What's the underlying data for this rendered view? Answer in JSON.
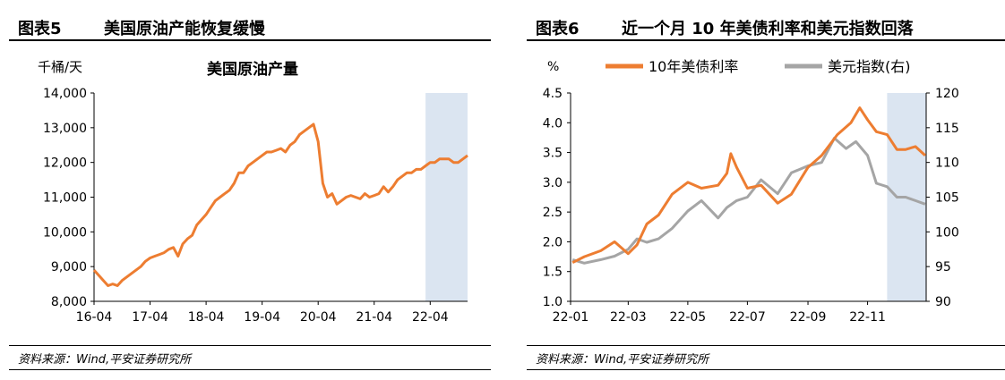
{
  "left": {
    "header_num": "图表5",
    "header_title": "美国原油产能恢复缓慢",
    "source": "资料来源：Wind,平安证券研究所"
  },
  "right": {
    "header_num": "图表6",
    "header_title": "近一个月 10 年美债利率和美元指数回落",
    "source": "资料来源：Wind,平安证券研究所"
  },
  "chart_data": [
    {
      "type": "line",
      "title": "美国原油产量",
      "ylabel": "千桶/天",
      "ylim": [
        8000,
        14000
      ],
      "y_ticks": [
        "8,000",
        "9,000",
        "10,000",
        "11,000",
        "12,000",
        "13,000",
        "14,000"
      ],
      "x_ticks": [
        "16-04",
        "17-04",
        "18-04",
        "19-04",
        "20-04",
        "21-04",
        "22-04"
      ],
      "xlim": [
        "2016-04",
        "2022-12"
      ],
      "highlight": {
        "from": "2022-03",
        "to": "2022-12",
        "color": "#dbe5f1"
      },
      "colors": {
        "line": "#ED7D31"
      },
      "series": [
        {
          "x": [
            "2016-04",
            "2016-05",
            "2016-06",
            "2016-07",
            "2016-08",
            "2016-09",
            "2016-10",
            "2016-11",
            "2016-12",
            "2017-01",
            "2017-02",
            "2017-03",
            "2017-04",
            "2017-05",
            "2017-06",
            "2017-07",
            "2017-08",
            "2017-09",
            "2017-10",
            "2017-11",
            "2017-12",
            "2018-01",
            "2018-02",
            "2018-03",
            "2018-04",
            "2018-05",
            "2018-06",
            "2018-07",
            "2018-08",
            "2018-09",
            "2018-10",
            "2018-11",
            "2018-12",
            "2019-01",
            "2019-02",
            "2019-03",
            "2019-04",
            "2019-05",
            "2019-06",
            "2019-07",
            "2019-08",
            "2019-09",
            "2019-10",
            "2019-11",
            "2019-12",
            "2020-01",
            "2020-02",
            "2020-03",
            "2020-04",
            "2020-05",
            "2020-06",
            "2020-07",
            "2020-08",
            "2020-09",
            "2020-10",
            "2020-11",
            "2020-12",
            "2021-01",
            "2021-02",
            "2021-03",
            "2021-04",
            "2021-05",
            "2021-06",
            "2021-07",
            "2021-08",
            "2021-09",
            "2021-10",
            "2021-11",
            "2021-12",
            "2022-01",
            "2022-02",
            "2022-03",
            "2022-04",
            "2022-05",
            "2022-06",
            "2022-07",
            "2022-08",
            "2022-09",
            "2022-10",
            "2022-11",
            "2022-12"
          ],
          "values": [
            8900,
            8750,
            8600,
            8450,
            8500,
            8450,
            8600,
            8700,
            8800,
            8900,
            9000,
            9150,
            9250,
            9300,
            9350,
            9400,
            9500,
            9550,
            9300,
            9650,
            9800,
            9900,
            10200,
            10350,
            10500,
            10700,
            10900,
            11000,
            11100,
            11200,
            11400,
            11700,
            11700,
            11900,
            12000,
            12100,
            12200,
            12300,
            12300,
            12350,
            12400,
            12300,
            12500,
            12600,
            12800,
            12900,
            13000,
            13100,
            12600,
            11400,
            11000,
            11100,
            10800,
            10900,
            11000,
            11050,
            11000,
            10950,
            11100,
            11000,
            11050,
            11100,
            11300,
            11150,
            11300,
            11500,
            11600,
            11700,
            11700,
            11800,
            11800,
            11900,
            12000,
            12000,
            12100,
            12100,
            12100,
            12000,
            12000,
            12100,
            12200
          ]
        }
      ]
    },
    {
      "type": "line",
      "ylabel": "%",
      "ylim": [
        1.0,
        4.5
      ],
      "y_ticks": [
        "1.0",
        "1.5",
        "2.0",
        "2.5",
        "3.0",
        "3.5",
        "4.0",
        "4.5"
      ],
      "y2lim": [
        90,
        120
      ],
      "y2_ticks": [
        "90",
        "95",
        "100",
        "105",
        "110",
        "115",
        "120"
      ],
      "x_ticks": [
        "22-01",
        "22-03",
        "22-05",
        "22-07",
        "22-09",
        "22-11"
      ],
      "xlim": [
        "2022-01",
        "2022-12-31"
      ],
      "highlight": {
        "from": "2022-11-21",
        "to": "2022-12-31",
        "color": "#dbe5f1"
      },
      "colors": {
        "rate": "#ED7D31",
        "dxy": "#A5A5A5"
      },
      "series": [
        {
          "name": "10年美债利率",
          "axis": "left",
          "x": [
            "2022-01-03",
            "2022-01-15",
            "2022-02-01",
            "2022-02-15",
            "2022-03-01",
            "2022-03-10",
            "2022-03-20",
            "2022-04-01",
            "2022-04-15",
            "2022-05-01",
            "2022-05-15",
            "2022-06-01",
            "2022-06-10",
            "2022-06-14",
            "2022-06-20",
            "2022-07-01",
            "2022-07-15",
            "2022-08-01",
            "2022-08-15",
            "2022-09-01",
            "2022-09-15",
            "2022-10-01",
            "2022-10-15",
            "2022-10-24",
            "2022-11-01",
            "2022-11-10",
            "2022-11-21",
            "2022-12-01",
            "2022-12-10",
            "2022-12-20",
            "2022-12-30"
          ],
          "values": [
            1.65,
            1.75,
            1.85,
            2.0,
            1.8,
            1.95,
            2.3,
            2.45,
            2.8,
            3.0,
            2.9,
            2.95,
            3.15,
            3.48,
            3.25,
            2.9,
            2.95,
            2.65,
            2.8,
            3.25,
            3.45,
            3.8,
            4.0,
            4.25,
            4.05,
            3.85,
            3.8,
            3.55,
            3.55,
            3.6,
            3.45
          ]
        },
        {
          "name": "美元指数(右)",
          "axis": "right",
          "x": [
            "2022-01-03",
            "2022-01-15",
            "2022-02-01",
            "2022-02-15",
            "2022-03-01",
            "2022-03-10",
            "2022-03-20",
            "2022-04-01",
            "2022-04-15",
            "2022-05-01",
            "2022-05-15",
            "2022-06-01",
            "2022-06-10",
            "2022-06-20",
            "2022-07-01",
            "2022-07-15",
            "2022-08-01",
            "2022-08-15",
            "2022-09-01",
            "2022-09-15",
            "2022-09-28",
            "2022-10-10",
            "2022-10-20",
            "2022-11-01",
            "2022-11-10",
            "2022-11-21",
            "2022-12-01",
            "2022-12-10",
            "2022-12-20",
            "2022-12-30"
          ],
          "values": [
            96,
            95.5,
            96,
            96.5,
            97.5,
            99,
            98.5,
            99,
            100.5,
            103,
            104.5,
            102,
            103.5,
            104.5,
            105,
            107.5,
            105.5,
            108.5,
            109.5,
            110,
            113.5,
            112,
            113,
            111,
            107,
            106.5,
            105,
            105,
            104.5,
            104
          ]
        }
      ]
    }
  ]
}
